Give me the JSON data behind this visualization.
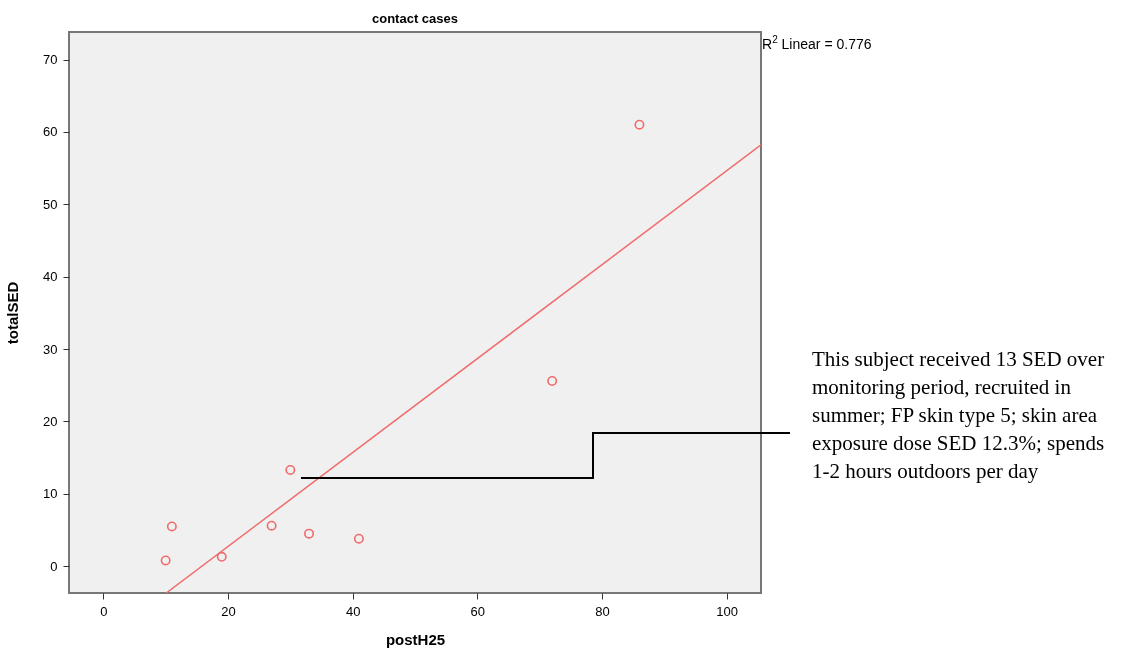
{
  "chart_data": {
    "type": "scatter",
    "title": "contact cases",
    "xlabel": "postH25",
    "ylabel": "totalSED",
    "annotations": [
      "R$^{2}$ Linear = 0.776",
      "This subject received 13 SED over monitoring period, recruited in summer; FP skin type 5; skin area exposure dose SED 12.3%; spends 1-2 hours outdoors per day"
    ],
    "series": [
      {
        "marker": "circle",
        "color": "#f06b6b",
        "x": [
          10,
          11,
          19,
          27,
          30,
          33,
          41,
          72,
          86
        ],
        "values": [
          0.8,
          5.5,
          1.3,
          5.6,
          13.3,
          4.5,
          3.8,
          25.6,
          61
        ]
      },
      {
        "type": "line",
        "color": "#f06b6b",
        "x": [
          10.1,
          105.5
        ],
        "values": [
          -3.7,
          58.2
        ]
      }
    ],
    "xlim": [
      -5.5,
      105.5
    ],
    "ylim": [
      -3.7,
      73.8
    ],
    "xticks": [
      0,
      20,
      40,
      60,
      80,
      100
    ],
    "yticks": [
      0,
      10,
      20,
      30,
      40,
      50,
      60,
      70
    ]
  }
}
